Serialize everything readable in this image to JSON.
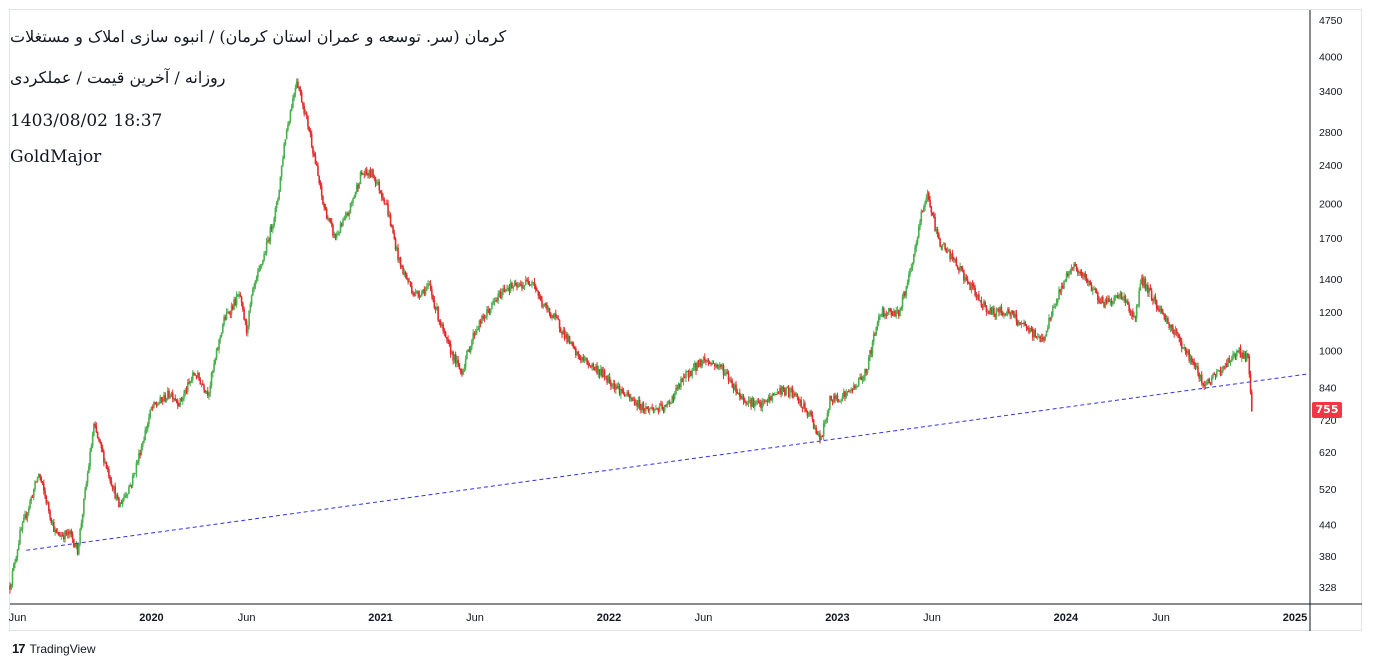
{
  "header": {
    "title": "کرمان (سر. توسعه و عمران استان کرمان) / انبوه سازی املاک و مستغلات",
    "subtitle": "روزانه / آخرین قیمت / عملکردی",
    "datetime": "1403/08/02 18:37",
    "watermark": "GoldMajor"
  },
  "footer": {
    "brand_mark": "17",
    "brand": "TradingView"
  },
  "colors": {
    "up": "#4caf50",
    "down": "#e32b2b",
    "trendline": "#3333ee",
    "badge": "#f23645",
    "text": "#131722"
  },
  "last_price_label": "755",
  "chart_data": {
    "type": "candlestick",
    "y_scale": "log",
    "ylim": [
      300,
      4900
    ],
    "x_range": [
      "2019-05-20",
      "2025-01-25"
    ],
    "yticks": [
      "4750",
      "4000",
      "3400",
      "2800",
      "2400",
      "2000",
      "1700",
      "1400",
      "1200",
      "1000",
      "840",
      "720",
      "620",
      "520",
      "440",
      "380",
      "328"
    ],
    "xticks": [
      {
        "label": "Jun",
        "date": "2019-06-01"
      },
      {
        "label": "2020",
        "date": "2020-01-01"
      },
      {
        "label": "Jun",
        "date": "2020-06-01"
      },
      {
        "label": "2021",
        "date": "2021-01-01"
      },
      {
        "label": "Jun",
        "date": "2021-06-01"
      },
      {
        "label": "2022",
        "date": "2022-01-01"
      },
      {
        "label": "Jun",
        "date": "2022-06-01"
      },
      {
        "label": "2023",
        "date": "2023-01-01"
      },
      {
        "label": "Jun",
        "date": "2023-06-01"
      },
      {
        "label": "2024",
        "date": "2024-01-01"
      },
      {
        "label": "Jun",
        "date": "2024-06-01"
      },
      {
        "label": "2025",
        "date": "2025-01-01"
      }
    ],
    "price_path": [
      [
        "2019-05-20",
        330
      ],
      [
        "2019-06-05",
        420
      ],
      [
        "2019-07-05",
        560
      ],
      [
        "2019-08-01",
        420
      ],
      [
        "2019-08-25",
        420
      ],
      [
        "2019-09-05",
        390
      ],
      [
        "2019-10-01",
        700
      ],
      [
        "2019-10-25",
        560
      ],
      [
        "2019-11-10",
        480
      ],
      [
        "2019-12-01",
        540
      ],
      [
        "2020-01-01",
        760
      ],
      [
        "2020-02-01",
        820
      ],
      [
        "2020-02-15",
        780
      ],
      [
        "2020-03-10",
        900
      ],
      [
        "2020-04-01",
        820
      ],
      [
        "2020-04-25",
        1150
      ],
      [
        "2020-05-20",
        1300
      ],
      [
        "2020-06-01",
        1100
      ],
      [
        "2020-06-10",
        1300
      ],
      [
        "2020-07-01",
        1600
      ],
      [
        "2020-07-20",
        2000
      ],
      [
        "2020-08-01",
        2700
      ],
      [
        "2020-08-20",
        3600
      ],
      [
        "2020-09-10",
        2800
      ],
      [
        "2020-10-01",
        2000
      ],
      [
        "2020-10-20",
        1700
      ],
      [
        "2020-11-10",
        1900
      ],
      [
        "2020-12-01",
        2300
      ],
      [
        "2020-12-20",
        2300
      ],
      [
        "2021-01-10",
        2000
      ],
      [
        "2021-02-01",
        1500
      ],
      [
        "2021-02-25",
        1300
      ],
      [
        "2021-03-20",
        1350
      ],
      [
        "2021-04-15",
        1050
      ],
      [
        "2021-05-10",
        900
      ],
      [
        "2021-06-01",
        1100
      ],
      [
        "2021-07-01",
        1250
      ],
      [
        "2021-07-20",
        1350
      ],
      [
        "2021-08-10",
        1350
      ],
      [
        "2021-09-01",
        1400
      ],
      [
        "2021-09-15",
        1250
      ],
      [
        "2021-10-10",
        1150
      ],
      [
        "2021-11-10",
        980
      ],
      [
        "2021-12-20",
        900
      ],
      [
        "2022-02-01",
        800
      ],
      [
        "2022-03-01",
        760
      ],
      [
        "2022-04-01",
        760
      ],
      [
        "2022-05-01",
        880
      ],
      [
        "2022-06-01",
        960
      ],
      [
        "2022-07-01",
        920
      ],
      [
        "2022-08-01",
        800
      ],
      [
        "2022-09-01",
        770
      ],
      [
        "2022-10-01",
        830
      ],
      [
        "2022-10-20",
        820
      ],
      [
        "2022-11-20",
        730
      ],
      [
        "2022-12-05",
        650
      ],
      [
        "2022-12-20",
        790
      ],
      [
        "2023-01-20",
        820
      ],
      [
        "2023-02-15",
        900
      ],
      [
        "2023-03-10",
        1200
      ],
      [
        "2023-04-10",
        1200
      ],
      [
        "2023-05-01",
        1500
      ],
      [
        "2023-05-15",
        1900
      ],
      [
        "2023-05-25",
        2100
      ],
      [
        "2023-06-10",
        1700
      ],
      [
        "2023-07-10",
        1500
      ],
      [
        "2023-08-10",
        1300
      ],
      [
        "2023-09-01",
        1200
      ],
      [
        "2023-10-01",
        1200
      ],
      [
        "2023-11-01",
        1100
      ],
      [
        "2023-11-25",
        1050
      ],
      [
        "2023-12-20",
        1300
      ],
      [
        "2024-01-10",
        1500
      ],
      [
        "2024-02-01",
        1400
      ],
      [
        "2024-03-01",
        1250
      ],
      [
        "2024-04-01",
        1300
      ],
      [
        "2024-04-20",
        1150
      ],
      [
        "2024-05-01",
        1400
      ],
      [
        "2024-06-01",
        1200
      ],
      [
        "2024-07-01",
        1050
      ],
      [
        "2024-07-20",
        950
      ],
      [
        "2024-08-10",
        850
      ],
      [
        "2024-09-01",
        900
      ],
      [
        "2024-10-01",
        1000
      ],
      [
        "2024-10-18",
        960
      ],
      [
        "2024-10-24",
        755
      ]
    ],
    "trendline": [
      [
        "2019-06-15",
        390
      ],
      [
        "2025-01-20",
        895
      ]
    ],
    "last_price": 755
  }
}
